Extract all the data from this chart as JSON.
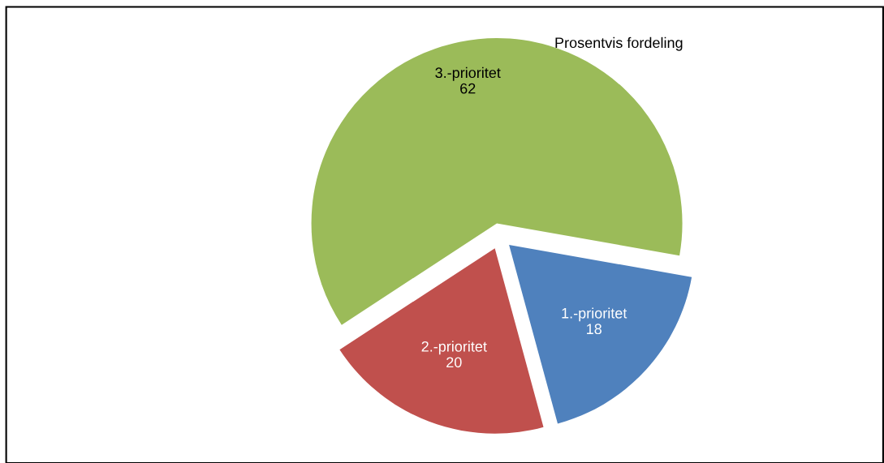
{
  "chart_data": {
    "type": "pie",
    "title": "Prosentvis fordeling",
    "categories": [
      "1.-prioritet",
      "2.-prioritet",
      "3.-prioritet"
    ],
    "values": [
      18,
      20,
      62
    ],
    "colors": [
      "#4f81bd",
      "#c0504d",
      "#9bbb59"
    ],
    "data_labels": true
  }
}
